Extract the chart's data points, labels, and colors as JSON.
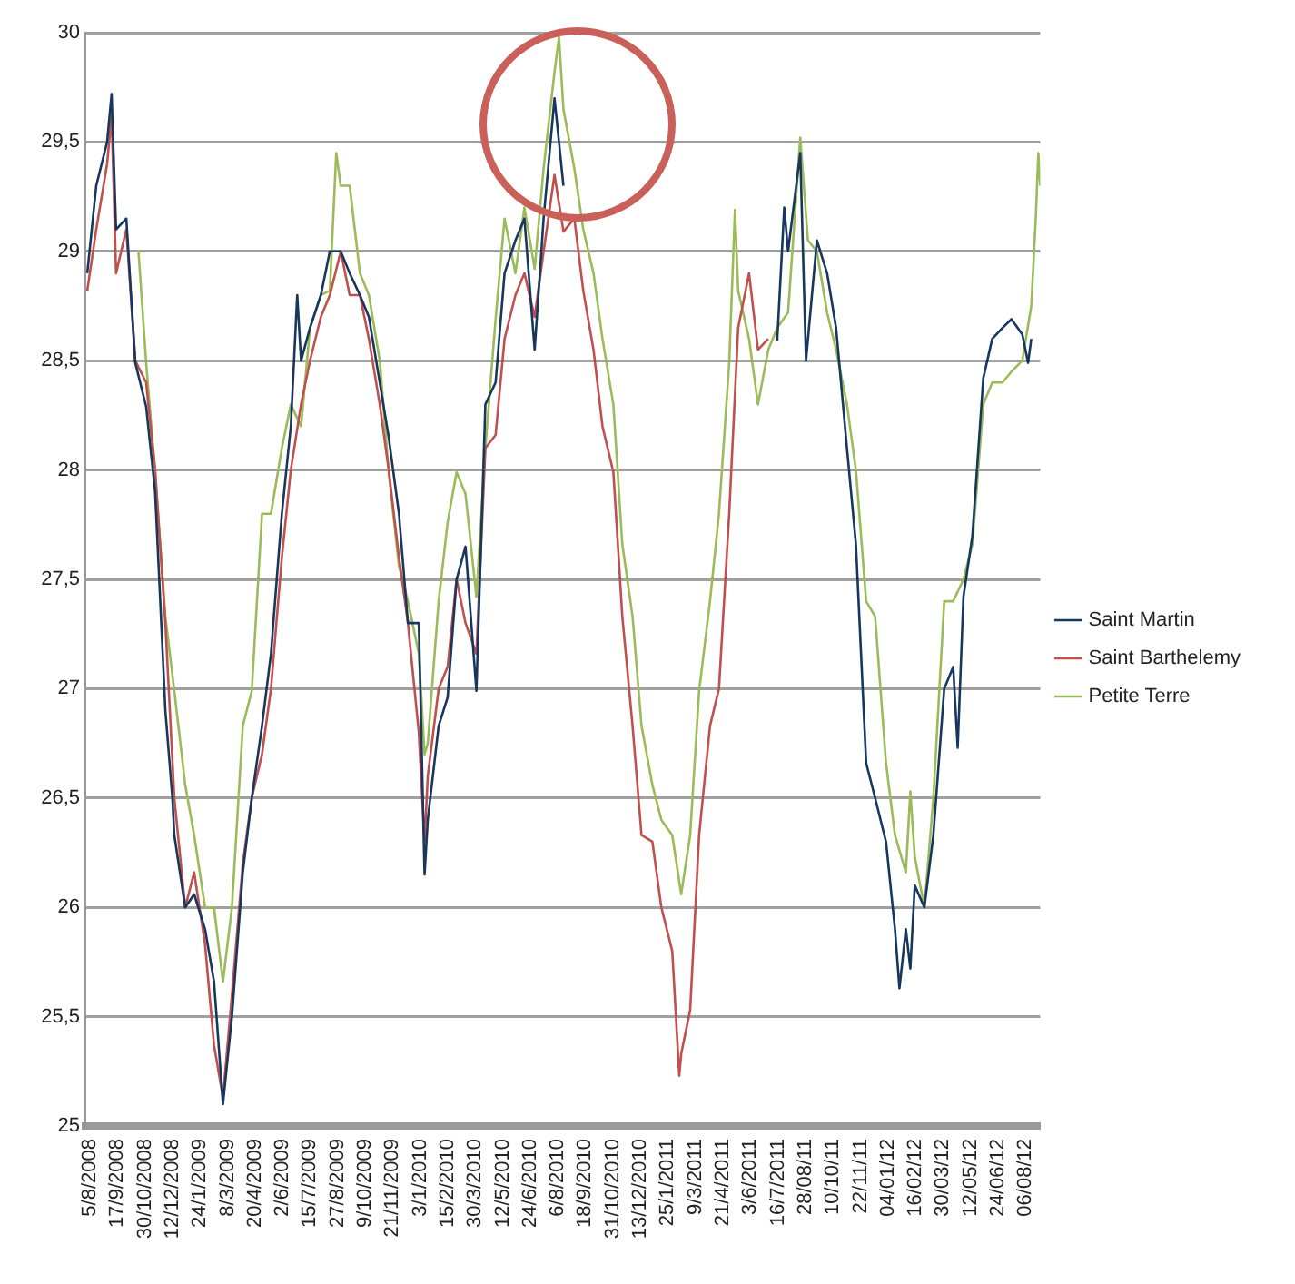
{
  "chart_data": {
    "type": "line",
    "legend": "right",
    "grid": "y",
    "marker": "none",
    "line_style": "solid",
    "xlim": [
      "2008-07-29",
      "2012-08-29"
    ],
    "xticks": [
      {
        "value": "2008-08-05",
        "label": "5/8/2008"
      },
      {
        "value": "2008-09-17",
        "label": "17/9/2008"
      },
      {
        "value": "2008-10-30",
        "label": "30/10/2008"
      },
      {
        "value": "2008-12-12",
        "label": "12/12/2008"
      },
      {
        "value": "2009-01-24",
        "label": "24/1/2009"
      },
      {
        "value": "2009-03-08",
        "label": "8/3/2009"
      },
      {
        "value": "2009-04-20",
        "label": "20/4/2009"
      },
      {
        "value": "2009-06-02",
        "label": "2/6/2009"
      },
      {
        "value": "2009-07-15",
        "label": "15/7/2009"
      },
      {
        "value": "2009-08-27",
        "label": "27/8/2009"
      },
      {
        "value": "2009-10-09",
        "label": "9/10/2009"
      },
      {
        "value": "2009-11-21",
        "label": "21/11/2009"
      },
      {
        "value": "2010-01-03",
        "label": "3/1/2010"
      },
      {
        "value": "2010-02-15",
        "label": "15/2/2010"
      },
      {
        "value": "2010-03-30",
        "label": "30/3/2010"
      },
      {
        "value": "2010-05-12",
        "label": "12/5/2010"
      },
      {
        "value": "2010-06-24",
        "label": "24/6/2010"
      },
      {
        "value": "2010-08-06",
        "label": "6/8/2010"
      },
      {
        "value": "2010-09-18",
        "label": "18/9/2010"
      },
      {
        "value": "2010-10-31",
        "label": "31/10/2010"
      },
      {
        "value": "2010-12-13",
        "label": "13/12/2010"
      },
      {
        "value": "2011-01-25",
        "label": "25/1/2011"
      },
      {
        "value": "2011-03-09",
        "label": "9/3/2011"
      },
      {
        "value": "2011-04-21",
        "label": "21/4/2011"
      },
      {
        "value": "2011-06-03",
        "label": "3/6/2011"
      },
      {
        "value": "2011-07-16",
        "label": "16/7/2011"
      },
      {
        "value": "2011-08-28",
        "label": "28/08/11"
      },
      {
        "value": "2011-10-10",
        "label": "10/10/11"
      },
      {
        "value": "2011-11-22",
        "label": "22/11/11"
      },
      {
        "value": "2012-01-04",
        "label": "04/01/12"
      },
      {
        "value": "2012-02-16",
        "label": "16/02/12"
      },
      {
        "value": "2012-03-30",
        "label": "30/03/12"
      },
      {
        "value": "2012-05-12",
        "label": "12/05/12"
      },
      {
        "value": "2012-06-24",
        "label": "24/06/12"
      },
      {
        "value": "2012-08-06",
        "label": "06/08/12"
      }
    ],
    "ylim": [
      25,
      30
    ],
    "yticks": [
      25,
      {
        "value": 25.5,
        "label": "25,5"
      },
      26,
      {
        "value": 26.5,
        "label": "26,5"
      },
      27,
      {
        "value": 27.5,
        "label": "27,5"
      },
      28,
      {
        "value": 28.5,
        "label": "28,5"
      },
      29,
      {
        "value": 29.5,
        "label": "29,5"
      },
      30
    ],
    "series": [
      {
        "name": "Saint Martin",
        "color": "#17375e",
        "x": [
          "2008-08-01",
          "2008-08-15",
          "2008-09-01",
          "2008-09-08",
          "2008-09-15",
          "2008-10-01",
          "2008-10-15",
          "2008-11-01",
          "2008-11-15",
          "2008-12-01",
          "2008-12-12",
          "2008-12-15",
          "2009-01-01",
          "2009-01-15",
          "2009-02-01",
          "2009-02-15",
          "2009-03-01",
          "2009-03-15",
          "2009-04-01",
          "2009-04-15",
          "2009-05-01",
          "2009-05-15",
          "2009-06-01",
          "2009-06-15",
          "2009-06-25",
          "2009-07-01",
          "2009-07-15",
          "2009-08-01",
          "2009-08-15",
          "2009-09-01",
          "2009-09-15",
          "2009-10-01",
          "2009-10-15",
          "2009-11-01",
          "2009-11-15",
          "2009-12-01",
          "2009-12-15",
          "2010-01-01",
          "2010-01-10",
          "2010-01-15",
          "2010-02-01",
          "2010-02-15",
          "2010-03-01",
          "2010-03-15",
          "2010-04-01",
          "2010-04-15",
          "2010-05-01",
          "2010-05-15",
          "2010-06-01",
          "2010-06-15",
          "2010-07-01",
          "2010-07-15",
          "2010-08-01",
          "2010-08-15",
          "2010-09-01",
          "2011-06-01",
          "2011-07-15",
          "2011-07-26",
          "2011-08-01",
          "2011-08-20",
          "2011-08-29",
          "2011-09-15",
          "2011-10-01",
          "2011-10-15",
          "2011-11-01",
          "2011-11-15",
          "2011-12-01",
          "2011-12-15",
          "2012-01-01",
          "2012-01-15",
          "2012-01-22",
          "2012-02-01",
          "2012-02-08",
          "2012-02-15",
          "2012-03-01",
          "2012-03-15",
          "2012-04-01",
          "2012-04-15",
          "2012-04-22",
          "2012-05-01",
          "2012-05-15",
          "2012-06-01",
          "2012-06-15",
          "2012-07-01",
          "2012-07-15",
          "2012-08-01",
          "2012-08-10",
          "2012-08-15"
        ],
        "values": [
          28.9,
          29.3,
          29.5,
          29.72,
          29.1,
          29.15,
          28.49,
          28.29,
          27.9,
          26.9,
          26.5,
          26.33,
          26.0,
          26.06,
          25.9,
          25.66,
          25.1,
          25.5,
          26.16,
          26.5,
          26.83,
          27.16,
          27.8,
          28.2,
          28.8,
          28.5,
          28.65,
          28.8,
          29.0,
          29.0,
          28.9,
          28.8,
          28.7,
          28.4,
          28.15,
          27.8,
          27.3,
          27.3,
          26.15,
          26.4,
          26.83,
          26.96,
          27.5,
          27.65,
          26.99,
          28.3,
          28.4,
          28.9,
          29.05,
          29.15,
          28.55,
          29.15,
          29.7,
          29.3,
          null,
          null,
          28.59,
          29.2,
          29.0,
          29.45,
          28.5,
          29.05,
          28.9,
          28.65,
          28.1,
          27.66,
          26.66,
          26.5,
          26.3,
          25.9,
          25.63,
          25.9,
          25.72,
          26.1,
          26.0,
          26.33,
          27.0,
          27.1,
          26.73,
          27.42,
          27.7,
          28.42,
          28.6,
          28.65,
          28.69,
          28.62,
          28.49,
          28.6
        ]
      },
      {
        "name": "Saint Barthelemy",
        "color": "#c0504d",
        "x": [
          "2008-08-01",
          "2008-08-15",
          "2008-09-01",
          "2008-09-08",
          "2008-09-15",
          "2008-10-01",
          "2008-10-15",
          "2008-11-01",
          "2008-11-15",
          "2008-12-01",
          "2008-12-15",
          "2009-01-01",
          "2009-01-15",
          "2009-02-01",
          "2009-02-15",
          "2009-03-01",
          "2009-03-15",
          "2009-04-01",
          "2009-04-15",
          "2009-05-01",
          "2009-05-15",
          "2009-06-01",
          "2009-06-15",
          "2009-07-01",
          "2009-07-15",
          "2009-08-01",
          "2009-08-15",
          "2009-09-01",
          "2009-09-15",
          "2009-10-01",
          "2009-10-15",
          "2009-11-01",
          "2009-11-15",
          "2009-12-01",
          "2009-12-15",
          "2010-01-01",
          "2010-01-10",
          "2010-01-15",
          "2010-02-01",
          "2010-02-15",
          "2010-03-01",
          "2010-03-15",
          "2010-04-01",
          "2010-04-15",
          "2010-05-01",
          "2010-05-15",
          "2010-06-01",
          "2010-06-15",
          "2010-07-01",
          "2010-07-15",
          "2010-08-01",
          "2010-08-15",
          "2010-09-01",
          "2010-09-15",
          "2010-10-01",
          "2010-10-15",
          "2010-11-01",
          "2010-11-15",
          "2010-12-01",
          "2010-12-15",
          "2011-01-01",
          "2011-01-15",
          "2011-02-01",
          "2011-02-12",
          "2011-02-15",
          "2011-03-01",
          "2011-03-15",
          "2011-04-01",
          "2011-04-15",
          "2011-05-01",
          "2011-05-15",
          "2011-06-01",
          "2011-06-15",
          "2011-07-01"
        ],
        "values": [
          28.82,
          29.1,
          29.4,
          29.62,
          28.9,
          29.1,
          28.5,
          28.4,
          28.0,
          27.3,
          26.5,
          26.0,
          26.16,
          25.83,
          25.37,
          25.13,
          25.6,
          26.2,
          26.5,
          26.7,
          27.0,
          27.6,
          28.0,
          28.3,
          28.5,
          28.7,
          28.8,
          29.0,
          28.8,
          28.8,
          28.6,
          28.3,
          28.0,
          27.6,
          27.3,
          26.8,
          26.3,
          26.6,
          27.0,
          27.1,
          27.5,
          27.3,
          27.16,
          28.1,
          28.16,
          28.6,
          28.8,
          28.9,
          28.7,
          29.0,
          29.35,
          29.09,
          29.15,
          28.82,
          28.55,
          28.2,
          27.99,
          27.33,
          26.83,
          26.33,
          26.3,
          26.0,
          25.8,
          25.23,
          25.33,
          25.53,
          26.33,
          26.83,
          27.0,
          27.8,
          28.65,
          28.9,
          28.55,
          28.6
        ]
      },
      {
        "name": "Petite Terre",
        "color": "#9bbb59",
        "x": [
          "2008-10-20",
          "2008-11-01",
          "2008-11-15",
          "2008-12-01",
          "2008-12-15",
          "2009-01-01",
          "2009-01-15",
          "2009-02-01",
          "2009-02-15",
          "2009-03-01",
          "2009-03-15",
          "2009-04-01",
          "2009-04-15",
          "2009-05-01",
          "2009-05-15",
          "2009-06-01",
          "2009-06-15",
          "2009-07-01",
          "2009-07-15",
          "2009-08-01",
          "2009-08-15",
          "2009-08-25",
          "2009-09-01",
          "2009-09-15",
          "2009-10-01",
          "2009-10-15",
          "2009-11-01",
          "2009-11-15",
          "2009-12-01",
          "2009-12-15",
          "2010-01-01",
          "2010-01-10",
          "2010-01-15",
          "2010-02-01",
          "2010-02-15",
          "2010-03-01",
          "2010-03-15",
          "2010-04-01",
          "2010-04-15",
          "2010-05-01",
          "2010-05-15",
          "2010-06-01",
          "2010-06-15",
          "2010-07-01",
          "2010-07-15",
          "2010-08-01",
          "2010-08-08",
          "2010-08-15",
          "2010-09-01",
          "2010-09-15",
          "2010-10-01",
          "2010-10-15",
          "2010-11-01",
          "2010-11-15",
          "2010-12-01",
          "2010-12-15",
          "2011-01-01",
          "2011-01-15",
          "2011-02-01",
          "2011-02-15",
          "2011-03-01",
          "2011-03-15",
          "2011-04-01",
          "2011-04-15",
          "2011-05-01",
          "2011-05-10",
          "2011-05-15",
          "2011-06-01",
          "2011-06-15",
          "2011-07-01",
          "2011-07-15",
          "2011-08-01",
          "2011-08-20",
          "2011-09-01",
          "2011-09-15",
          "2011-10-01",
          "2011-10-15",
          "2011-11-01",
          "2011-11-15",
          "2011-12-01",
          "2011-12-15",
          "2012-01-01",
          "2012-01-15",
          "2012-02-01",
          "2012-02-08",
          "2012-02-15",
          "2012-03-01",
          "2012-03-15",
          "2012-04-01",
          "2012-04-15",
          "2012-05-01",
          "2012-05-15",
          "2012-06-01",
          "2012-06-15",
          "2012-07-01",
          "2012-07-15",
          "2012-08-01",
          "2012-08-15",
          "2012-08-22",
          "2012-08-26",
          "2012-08-29"
        ],
        "values": [
          29.0,
          28.49,
          27.99,
          27.33,
          26.99,
          26.56,
          26.33,
          26.0,
          26.0,
          25.66,
          26.0,
          26.83,
          26.99,
          27.8,
          27.8,
          28.1,
          28.3,
          28.2,
          28.65,
          28.8,
          28.82,
          29.45,
          29.3,
          29.3,
          28.9,
          28.8,
          28.5,
          27.99,
          27.56,
          27.4,
          27.16,
          26.7,
          26.75,
          27.4,
          27.76,
          27.99,
          27.89,
          27.42,
          28.1,
          28.69,
          29.15,
          28.9,
          29.2,
          28.92,
          29.38,
          29.82,
          29.98,
          29.65,
          29.38,
          29.1,
          28.9,
          28.6,
          28.3,
          27.66,
          27.33,
          26.83,
          26.56,
          26.4,
          26.33,
          26.06,
          26.33,
          26.99,
          27.4,
          27.8,
          28.49,
          29.19,
          28.82,
          28.6,
          28.3,
          28.55,
          28.65,
          28.72,
          29.52,
          29.05,
          29.0,
          28.72,
          28.55,
          28.3,
          28.0,
          27.4,
          27.33,
          26.66,
          26.33,
          26.16,
          26.53,
          26.23,
          26.0,
          26.5,
          27.4,
          27.4,
          27.5,
          27.66,
          28.3,
          28.4,
          28.4,
          28.45,
          28.5,
          28.75,
          29.15,
          29.45,
          29.3
        ]
      }
    ]
  }
}
